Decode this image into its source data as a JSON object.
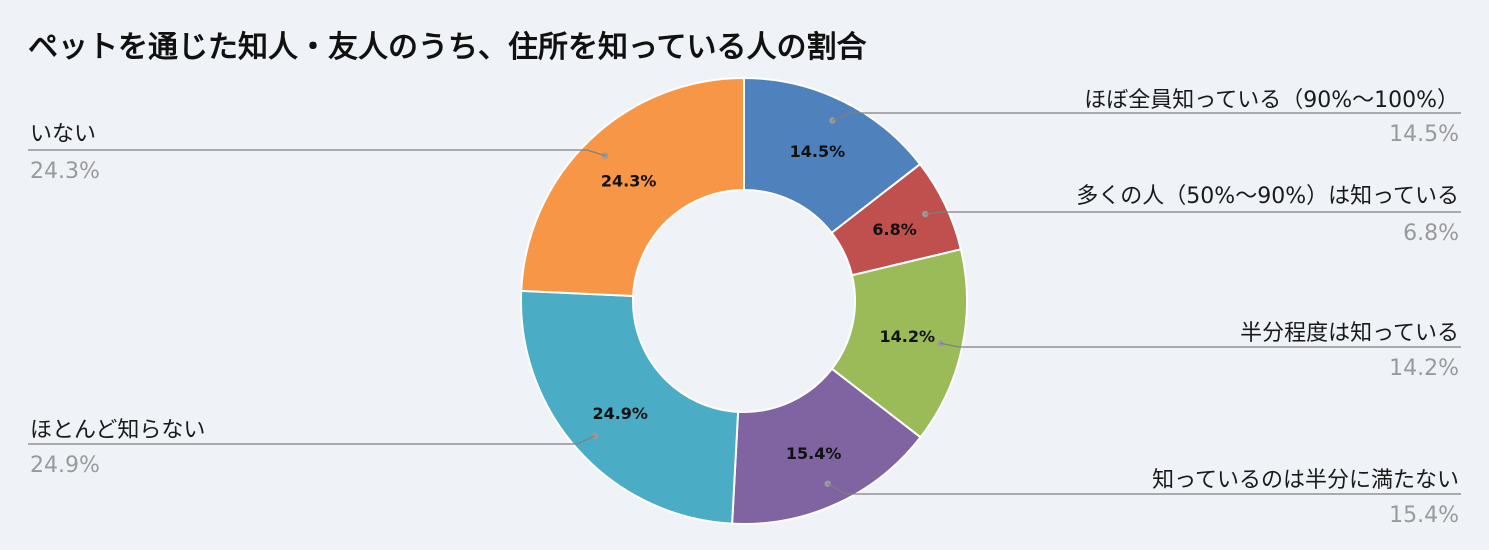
{
  "chart_data": {
    "type": "pie",
    "variant": "donut",
    "title": "ペットを通じた知人・友人のうち、住所を知っている人の割合",
    "slices": [
      {
        "label": "ほぼ全員知っている（90%〜100%）",
        "value": 14.5,
        "display": "14.5%",
        "color": "#4f81bd"
      },
      {
        "label": "多くの人（50%〜90%）は知っている",
        "value": 6.8,
        "display": "6.8%",
        "color": "#c0504d"
      },
      {
        "label": "半分程度は知っている",
        "value": 14.2,
        "display": "14.2%",
        "color": "#9bbb59"
      },
      {
        "label": "知っているのは半分に満たない",
        "value": 15.4,
        "display": "15.4%",
        "color": "#8064a2"
      },
      {
        "label": "ほとんど知らない",
        "value": 24.9,
        "display": "24.9%",
        "color": "#4bacc6"
      },
      {
        "label": "いない",
        "value": 24.3,
        "display": "24.3%",
        "color": "#f79646"
      }
    ],
    "legend": "callout-labels"
  }
}
